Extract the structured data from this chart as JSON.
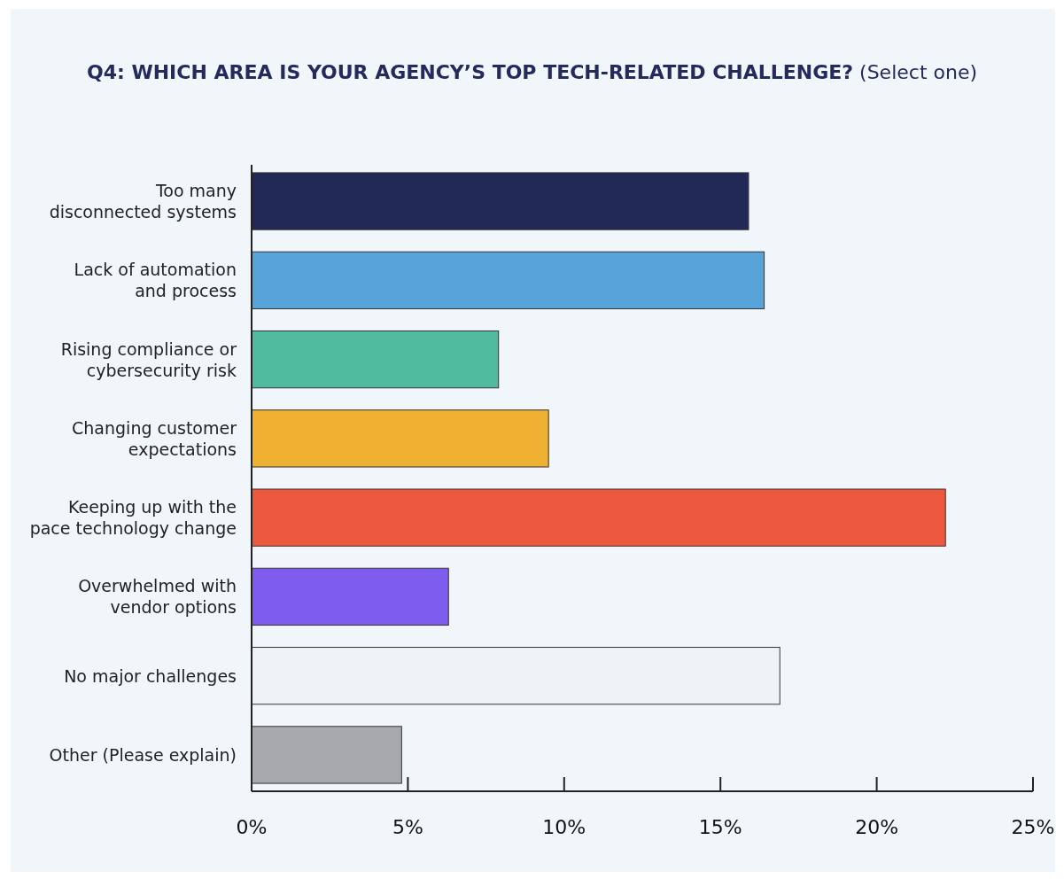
{
  "chart_data": {
    "type": "bar",
    "orientation": "horizontal",
    "title": "Q4: WHICH AREA IS YOUR AGENCY’S TOP TECH-RELATED CHALLENGE?",
    "subtitle": "(Select one)",
    "categories": [
      "Too many\ndisconnected systems",
      "Lack of automation\nand process",
      "Rising compliance or\ncybersecurity risk",
      "Changing customer\nexpectations",
      "Keeping up with the\npace technology change",
      "Overwhelmed with\nvendor options",
      "No major challenges",
      "Other (Please explain)"
    ],
    "values": [
      15.9,
      16.4,
      7.9,
      9.5,
      22.2,
      6.3,
      16.9,
      4.8
    ],
    "colors": [
      "#222957",
      "#58a3da",
      "#50bb9f",
      "#f0b032",
      "#ec593e",
      "#7e5ced",
      "#eff3f8",
      "#a8a9ac"
    ],
    "xlim": [
      0,
      25
    ],
    "xticks": [
      {
        "value": 0,
        "label": "0%"
      },
      {
        "value": 5,
        "label": "5%"
      },
      {
        "value": 10,
        "label": "10%"
      },
      {
        "value": 15,
        "label": "15%"
      },
      {
        "value": 20,
        "label": "20%"
      },
      {
        "value": 25,
        "label": "25%"
      }
    ],
    "grid": false
  }
}
